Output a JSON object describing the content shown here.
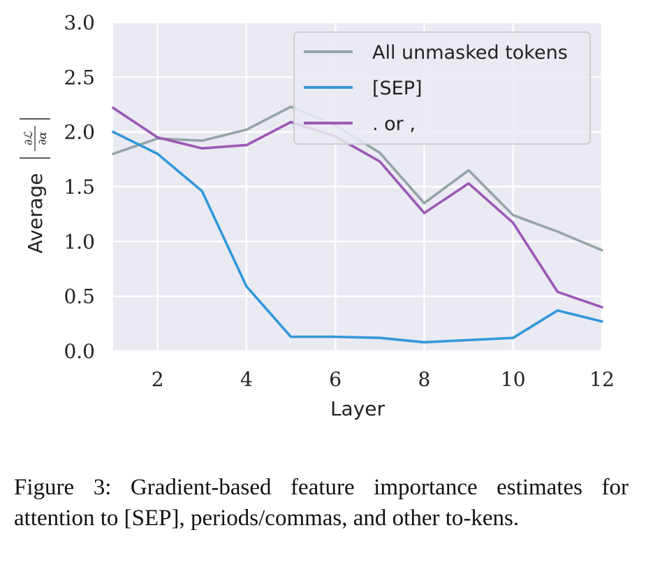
{
  "chart_data": {
    "type": "line",
    "x": [
      1,
      2,
      3,
      4,
      5,
      6,
      7,
      8,
      9,
      10,
      11,
      12
    ],
    "series": [
      {
        "name": "All unmasked tokens",
        "color": "#95a5a6",
        "values": [
          1.8,
          1.94,
          1.92,
          2.02,
          2.23,
          2.06,
          1.81,
          1.35,
          1.65,
          1.24,
          1.09,
          0.92
        ]
      },
      {
        "name": "[SEP]",
        "color": "#3498db",
        "values": [
          2.0,
          1.8,
          1.46,
          0.59,
          0.13,
          0.13,
          0.12,
          0.08,
          0.1,
          0.12,
          0.37,
          0.27
        ]
      },
      {
        "name": ". or ,",
        "color": "#9b59b6",
        "values": [
          2.22,
          1.95,
          1.85,
          1.88,
          2.09,
          1.96,
          1.73,
          1.26,
          1.53,
          1.17,
          0.54,
          0.4
        ]
      }
    ],
    "xlim": [
      1,
      12
    ],
    "ylim": [
      0,
      3.0
    ],
    "xticks": [
      2,
      4,
      6,
      8,
      10,
      12
    ],
    "yticks": [
      0.0,
      0.5,
      1.0,
      1.5,
      2.0,
      2.5,
      3.0
    ],
    "xtick_labels": [
      "2",
      "4",
      "6",
      "8",
      "10",
      "12"
    ],
    "ytick_labels": [
      "0.0",
      "0.5",
      "1.0",
      "1.5",
      "2.0",
      "2.5",
      "3.0"
    ],
    "xlabel": "Layer",
    "ylabel_text": "Average",
    "ylabel_frac_num": "∂ℒ",
    "ylabel_frac_den": "∂α",
    "grid": true,
    "legend_position": "top-right",
    "background": "#eaeaf2"
  },
  "caption": {
    "text": "Figure 3: Gradient-based feature importance estimates for attention to [SEP], periods/commas, and other to-kens."
  }
}
